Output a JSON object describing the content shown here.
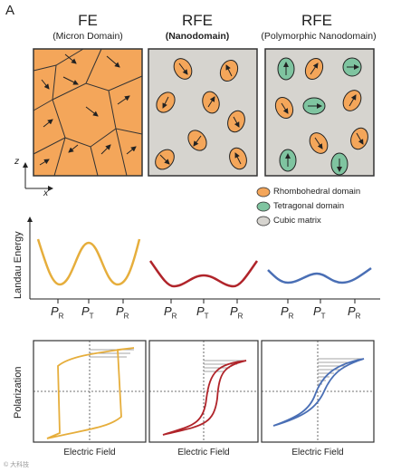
{
  "panel_letter": "A",
  "columns": [
    {
      "title": "FE",
      "subtitle": "(Micron Domain)"
    },
    {
      "title": "RFE",
      "subtitle": "(Nanodomain)"
    },
    {
      "title": "RFE",
      "subtitle": "(Polymorphic Nanodomain)"
    }
  ],
  "axes": {
    "z": "z",
    "x": "x"
  },
  "legend": [
    {
      "label": "Rhombohedral domain",
      "color": "#f4a65a"
    },
    {
      "label": "Tetragonal domain",
      "color": "#7fc4a0"
    },
    {
      "label": "Cubic matrix",
      "color": "#d6d4cf"
    }
  ],
  "energy": {
    "ylabel": "Landau Energy",
    "ticks": [
      "P_R",
      "P_T",
      "P_R"
    ],
    "curve_colors": [
      "#e6ae3c",
      "#b0242a",
      "#4a6fb5"
    ]
  },
  "hysteresis": {
    "ylabel": "Polarization",
    "xlabel": "Electric Field"
  },
  "colors": {
    "rhombohedral": "#f4a65a",
    "tetragonal": "#7fc4a0",
    "cubic": "#d6d4cf",
    "fe_loop": "#e6ae3c",
    "rfe_loop": "#b0242a",
    "poly_loop": "#4a6fb5"
  },
  "watermark": "© 大科技"
}
